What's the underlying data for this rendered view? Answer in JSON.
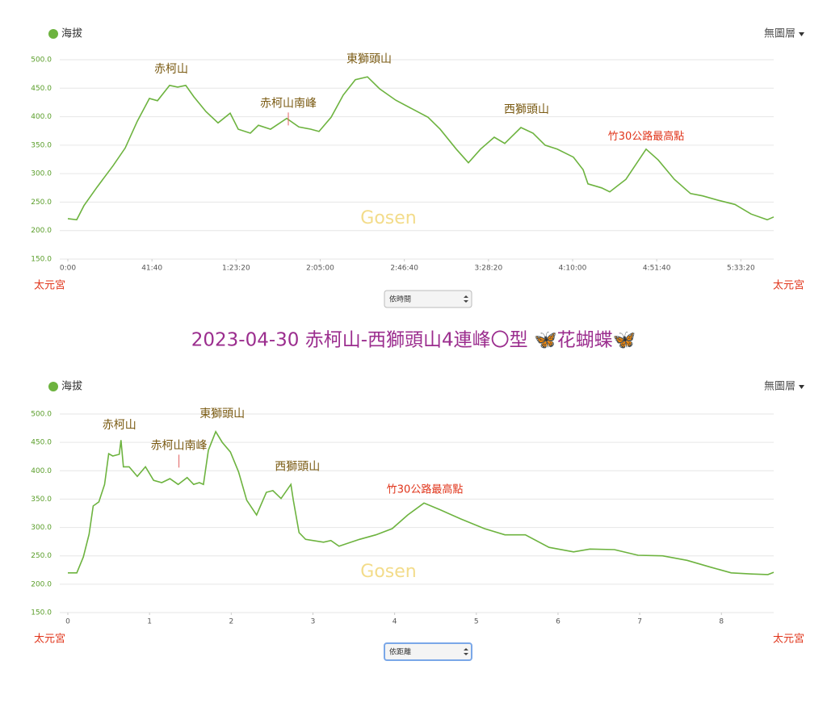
{
  "title": "2023-04-30 赤柯山-西獅頭山4連峰〇型 🦋花蝴蝶🦋",
  "chart_data": [
    {
      "type": "line",
      "legend": "海拔",
      "layer_menu": "無圖層",
      "start_label": "太元宮",
      "end_label": "太元宮",
      "selector": "依時間",
      "watermark": "Gosen",
      "color": "#6db33f",
      "grid": true,
      "x": [
        0,
        4.4,
        8,
        14.4,
        22.4,
        28.4,
        34.4,
        40.4,
        44.4,
        50.4,
        54.4,
        58.4,
        62.4,
        68.4,
        74.4,
        80.4,
        84.4,
        90.4,
        94.4,
        100.4,
        108.4,
        114.4,
        120.4,
        124.4,
        130.4,
        136.4,
        142.4,
        148.4,
        154.4,
        162.4,
        170.4,
        178.4,
        184.4,
        192.4,
        198.4,
        204.4,
        211.2,
        216.4,
        224.4,
        230.4,
        236.4,
        242.4,
        250.4,
        255.2,
        257.6,
        264.4,
        268.4,
        276.4,
        286.4,
        292.4,
        300.4,
        308.4,
        314.4,
        322.4,
        330.4,
        338.4,
        346.4,
        349.6
      ],
      "values": [
        221,
        219,
        244,
        276,
        314,
        345,
        392,
        432,
        428,
        455,
        452,
        455,
        435,
        409,
        389,
        406,
        378,
        371,
        385,
        378,
        397,
        382,
        378,
        374,
        399,
        438,
        465,
        470,
        449,
        429,
        414,
        399,
        378,
        343,
        319,
        343,
        364,
        353,
        381,
        371,
        350,
        343,
        329,
        307,
        282,
        275,
        268,
        290,
        343,
        324,
        290,
        265,
        261,
        253,
        246,
        229,
        219,
        224
      ],
      "xlim": [
        0,
        349.6
      ],
      "xticks": [
        {
          "value": 0,
          "label": "0:00"
        },
        {
          "value": 41.67,
          "label": "41:40"
        },
        {
          "value": 83.33,
          "label": "1:23:20"
        },
        {
          "value": 125,
          "label": "2:05:00"
        },
        {
          "value": 166.67,
          "label": "2:46:40"
        },
        {
          "value": 208.33,
          "label": "3:28:20"
        },
        {
          "value": 250,
          "label": "4:10:00"
        },
        {
          "value": 291.67,
          "label": "4:51:40"
        },
        {
          "value": 333.33,
          "label": "5:33:20"
        }
      ],
      "ylim": [
        150,
        500
      ],
      "yticks": [
        {
          "value": 150,
          "label": "150.0"
        },
        {
          "value": 200,
          "label": "200.0"
        },
        {
          "value": 250,
          "label": "250.0"
        },
        {
          "value": 300,
          "label": "300.0"
        },
        {
          "value": 350,
          "label": "350.0"
        },
        {
          "value": 400,
          "label": "400.0"
        },
        {
          "value": 450,
          "label": "450.0"
        },
        {
          "value": 500,
          "label": "500.0"
        }
      ],
      "annotations": [
        {
          "text": "赤柯山",
          "x": 51.2,
          "y": 483,
          "color": "#7a5a12"
        },
        {
          "text": "赤柯山南峰",
          "x": 109.2,
          "y": 423,
          "color": "#7a5a12",
          "pointer": true
        },
        {
          "text": "東獅頭山",
          "x": 149.2,
          "y": 501,
          "color": "#7a5a12"
        },
        {
          "text": "西獅頭山",
          "x": 227.2,
          "y": 412,
          "color": "#7a5a12"
        },
        {
          "text": "竹30公路最高點",
          "x": 286.4,
          "y": 365,
          "color": "#e0341a"
        }
      ]
    },
    {
      "type": "line",
      "legend": "海拔",
      "layer_menu": "無圖層",
      "start_label": "太元宮",
      "end_label": "太元宮",
      "selector": "依距離",
      "watermark": "Gosen",
      "color": "#6db33f",
      "grid": true,
      "x": [
        0,
        0.11,
        0.19,
        0.26,
        0.31,
        0.38,
        0.45,
        0.5,
        0.55,
        0.63,
        0.65,
        0.68,
        0.75,
        0.85,
        0.95,
        1.05,
        1.15,
        1.25,
        1.35,
        1.46,
        1.54,
        1.61,
        1.66,
        1.72,
        1.81,
        1.89,
        1.99,
        2.09,
        2.19,
        2.31,
        2.43,
        2.51,
        2.61,
        2.73,
        2.76,
        2.83,
        2.91,
        3.13,
        3.22,
        3.32,
        3.57,
        3.77,
        3.97,
        4.16,
        4.36,
        4.56,
        4.81,
        5.1,
        5.35,
        5.6,
        5.89,
        6.19,
        6.39,
        6.69,
        6.98,
        7.28,
        7.58,
        7.87,
        8.12,
        8.37,
        8.57,
        8.64
      ],
      "values": [
        220,
        220,
        248,
        288,
        338,
        345,
        376,
        430,
        426,
        429,
        454,
        407,
        407,
        390,
        407,
        383,
        379,
        386,
        376,
        388,
        376,
        379,
        376,
        436,
        469,
        450,
        433,
        398,
        348,
        322,
        362,
        365,
        351,
        376,
        348,
        291,
        279,
        274,
        277,
        267,
        279,
        287,
        298,
        322,
        343,
        331,
        315,
        298,
        287,
        287,
        265,
        257,
        262,
        261,
        251,
        250,
        242,
        230,
        220,
        218,
        217,
        221
      ],
      "xlim": [
        0,
        8.64
      ],
      "xticks": [
        0,
        1,
        2,
        3,
        4,
        5,
        6,
        7,
        8
      ],
      "ylim": [
        150,
        500
      ],
      "yticks": [
        {
          "value": 150,
          "label": "150.0"
        },
        {
          "value": 200,
          "label": "200.0"
        },
        {
          "value": 250,
          "label": "250.0"
        },
        {
          "value": 300,
          "label": "300.0"
        },
        {
          "value": 350,
          "label": "350.0"
        },
        {
          "value": 400,
          "label": "400.0"
        },
        {
          "value": 450,
          "label": "450.0"
        },
        {
          "value": 500,
          "label": "500.0"
        }
      ],
      "annotations": [
        {
          "text": "赤柯山",
          "x": 0.63,
          "y": 480,
          "color": "#7a5a12"
        },
        {
          "text": "赤柯山南峰",
          "x": 1.36,
          "y": 444,
          "color": "#7a5a12",
          "pointer": true
        },
        {
          "text": "東獅頭山",
          "x": 1.89,
          "y": 500,
          "color": "#7a5a12"
        },
        {
          "text": "西獅頭山",
          "x": 2.81,
          "y": 407,
          "color": "#7a5a12"
        },
        {
          "text": "竹30公路最高點",
          "x": 4.37,
          "y": 366,
          "color": "#e0341a"
        }
      ]
    }
  ]
}
